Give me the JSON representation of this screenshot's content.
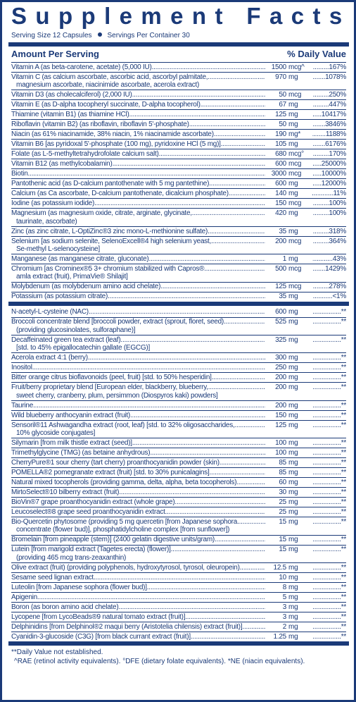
{
  "title": "Supplement Facts",
  "serving": {
    "size": "Serving Size 12 Capsules",
    "per_container": "Servings Per Container 30"
  },
  "header": {
    "amount": "Amount Per Serving",
    "dv": "% Daily Value"
  },
  "vitamins": [
    {
      "name": "Vitamin A (as beta-carotene, acetate) (5,000 IU)",
      "amount": 1500,
      "unit": "mcg^",
      "dv": "167%"
    },
    {
      "name": "Vitamin C (as calcium ascorbate, ascorbic acid, ascorbyl palmitate,",
      "cont": [
        "magnesium ascorbate, niacinimide ascorbate, acerola extract)"
      ],
      "amount": 970,
      "unit": "mg",
      "dv": "1078%"
    },
    {
      "name": "Vitamin D3 (as cholecalciferol) (2,000 IU)",
      "amount": 50,
      "unit": "mcg",
      "dv": "250%"
    },
    {
      "name": "Vitamin E (as D-alpha tocopheryl succinate, D-alpha tocopherol)",
      "amount": 67,
      "unit": "mg",
      "dv": "447%"
    },
    {
      "name": "Thiamine (vitamin B1) (as thiamine HCl)",
      "amount": 125,
      "unit": "mg",
      "dv": "10417%"
    },
    {
      "name": "Riboflavin (vitamin B2) (as riboflavin, riboflavin 5'-phosphate)",
      "amount": 50,
      "unit": "mg",
      "dv": "3846%"
    },
    {
      "name": "Niacin (as 61% niacinamide, 38% niacin, 1% niacinamide ascorbate)",
      "amount": 190,
      "unit": "mg*",
      "dv": "1188%"
    },
    {
      "name": "Vitamin B6 [as pyridoxal 5'-phosphate (100 mg), pyridoxine HCl (5 mg)]",
      "amount": 105,
      "unit": "mg",
      "dv": "6176%"
    },
    {
      "name": "Folate (as L-5-methyltetrahydrofolate calcium salt)",
      "amount": 680,
      "unit": "mcg°",
      "dv": "170%"
    },
    {
      "name": "Vitamin B12 (as methylcobalamin)",
      "amount": 600,
      "unit": "mcg",
      "dv": "25000%"
    },
    {
      "name": "Biotin",
      "amount": 3000,
      "unit": "mcg",
      "dv": "10000%"
    },
    {
      "name": "Pantothenic acid (as D-calcium pantothenate with 5 mg pantethine)",
      "amount": 600,
      "unit": "mg",
      "dv": "12000%"
    },
    {
      "name": "Calcium (as Ca ascorbate, D-calcium pantothenate, dicalcium phosphate)",
      "amount": 140,
      "unit": "mg",
      "dv": "11%"
    },
    {
      "name": "Iodine (as potassium iodide)",
      "amount": 150,
      "unit": "mcg",
      "dv": "100%"
    },
    {
      "name": "Magnesium (as magnesium oxide, citrate, arginate, glycinate,",
      "cont": [
        "taurinate, ascorbate)"
      ],
      "amount": 420,
      "unit": "mg",
      "dv": "100%"
    },
    {
      "name": "Zinc (as zinc citrate, L-OptiZinc®3 zinc mono-L-methionine sulfate)",
      "amount": 35,
      "unit": "mg",
      "dv": "318%"
    },
    {
      "name": "Selenium [as sodium selenite, SelenoExcell®4 high selenium yeast,",
      "cont": [
        "Se-methyl L-selenocysteine]"
      ],
      "amount": 200,
      "unit": "mcg",
      "dv": "364%"
    },
    {
      "name": "Manganese (as manganese citrate, gluconate)",
      "amount": 1,
      "unit": "mg",
      "dv": "43%"
    },
    {
      "name": "Chromium [as Crominex®5 3+ chromium stabilized with Capros®",
      "cont": [
        "amla extract (fruit), PrimaVie® Shilajit]"
      ],
      "amount": 500,
      "unit": "mcg",
      "dv": "1429%"
    },
    {
      "name": "Molybdenum (as molybdenum amino acid chelate)",
      "amount": 125,
      "unit": "mcg",
      "dv": "278%"
    },
    {
      "name": "Potassium (as potassium citrate)",
      "amount": 35,
      "unit": "mg",
      "dv": "<1%"
    }
  ],
  "others": [
    {
      "name": "N-acetyl-L-cysteine (NAC)",
      "amount": 600,
      "unit": "mg",
      "dv": "**"
    },
    {
      "name": "Broccoli concentrate blend [broccoli powder, extract (sprout, floret, seed)",
      "cont": [
        "(providing glucosinolates, sulforaphane)]"
      ],
      "amount": 525,
      "unit": "mg",
      "dv": "**"
    },
    {
      "name": "Decaffeinated green tea extract (leaf)",
      "cont": [
        "[std. to 45% epigallocatechin gallate (EGCG)]"
      ],
      "amount": 325,
      "unit": "mg",
      "dv": "**"
    },
    {
      "name": "Acerola extract 4:1 (berry)",
      "amount": 300,
      "unit": "mg",
      "dv": "**"
    },
    {
      "name": "Inositol",
      "amount": 250,
      "unit": "mg",
      "dv": "**"
    },
    {
      "name": "Bitter orange citrus bioflavonoids (peel, fruit) [std. to 50% hesperidin]",
      "amount": 200,
      "unit": "mg",
      "dv": "**"
    },
    {
      "name": "Fruit/berry proprietary blend [European elder, blackberry, blueberry,",
      "cont": [
        "sweet cherry, cranberry, plum, persimmon (Diospyros kaki) powders]"
      ],
      "amount": 200,
      "unit": "mg",
      "dv": "**"
    },
    {
      "name": "Taurine",
      "amount": 200,
      "unit": "mg",
      "dv": "**"
    },
    {
      "name": "Wild blueberry anthocyanin extract (fruit)",
      "amount": 150,
      "unit": "mg",
      "dv": "**"
    },
    {
      "name": "Sensoril®11 Ashwagandha extract (root, leaf) [std. to 32% oligosaccharides,",
      "cont": [
        "10% glycoside conjugates]"
      ],
      "amount": 125,
      "unit": "mg",
      "dv": "**"
    },
    {
      "name": "Silymarin [from milk thistle extract (seed)]",
      "amount": 100,
      "unit": "mg",
      "dv": "**"
    },
    {
      "name": "Trimethylglycine (TMG) (as betaine anhydrous)",
      "amount": 100,
      "unit": "mg",
      "dv": "**"
    },
    {
      "name": "CherryPure®1 sour cherry (tart cherry) proanthocyanidin powder (skin)",
      "amount": 85,
      "unit": "mg",
      "dv": "**"
    },
    {
      "name": "POMELLA®2 pomegranate extract (fruit) [std. to 30% punicalagins]",
      "amount": 85,
      "unit": "mg",
      "dv": "**"
    },
    {
      "name": "Natural mixed tocopherols (providing gamma, delta, alpha, beta tocopherols)",
      "amount": 60,
      "unit": "mg",
      "dv": "**"
    },
    {
      "name": "MirtoSelect®10 bilberry extract (fruit)",
      "amount": 30,
      "unit": "mg",
      "dv": "**"
    },
    {
      "name": "BioVin®7 grape proanthocyanidin extract (whole grape)",
      "amount": 25,
      "unit": "mg",
      "dv": "**"
    },
    {
      "name": "Leucoselect®8 grape seed proanthocyanidin extract",
      "amount": 25,
      "unit": "mg",
      "dv": "**"
    },
    {
      "name": "Bio-Quercetin phytosome (providing 5 mg quercetin [from Japanese sophora",
      "cont": [
        "concentrate (flower bud)], phosphatidylcholine complex [from sunflower])"
      ],
      "amount": 15,
      "unit": "mg",
      "dv": "**"
    },
    {
      "name": "Bromelain [from pineapple (stem)] (2400 gelatin digestive units/gram)",
      "amount": 15,
      "unit": "mg",
      "dv": "**"
    },
    {
      "name": "Lutein [from marigold extract (Tagetes erecta) (flower)]",
      "cont": [
        "(providing 465 mcg trans-zeaxanthin)"
      ],
      "amount": 15,
      "unit": "mg",
      "dv": "**"
    },
    {
      "name": "Olive extract (fruit) (providing polyphenols, hydroxytyrosol, tyrosol, oleuropein)",
      "amount": 12.5,
      "unit": "mg",
      "dv": "**"
    },
    {
      "name": "Sesame seed lignan extract",
      "amount": 10,
      "unit": "mg",
      "dv": "**"
    },
    {
      "name": "Luteolin [from Japanese sophora (flower bud)]",
      "amount": 8,
      "unit": "mg",
      "dv": "**"
    },
    {
      "name": "Apigenin",
      "amount": 5,
      "unit": "mg",
      "dv": "**"
    },
    {
      "name": "Boron (as boron amino acid chelate)",
      "amount": 3,
      "unit": "mg",
      "dv": "**"
    },
    {
      "name": "Lycopene [from LycoBeads®9 natural tomato extract (fruit)]",
      "amount": 3,
      "unit": "mg",
      "dv": "**"
    },
    {
      "name": "Delphinidins [from Delphinol®2 maqui berry (Aristotelia chilensis) extract (fruit)]",
      "amount": 2,
      "unit": "mg",
      "dv": "**"
    },
    {
      "name": "Cyanidin-3-glucoside (C3G) [from black currant extract (fruit)]",
      "amount": 1.25,
      "unit": "mg",
      "dv": "**"
    }
  ],
  "footnotes": [
    "**Daily Value not established.",
    "^RAE (retinol activity equivalents). °DFE (dietary folate equivalents). *NE (niacin equivalents)."
  ]
}
